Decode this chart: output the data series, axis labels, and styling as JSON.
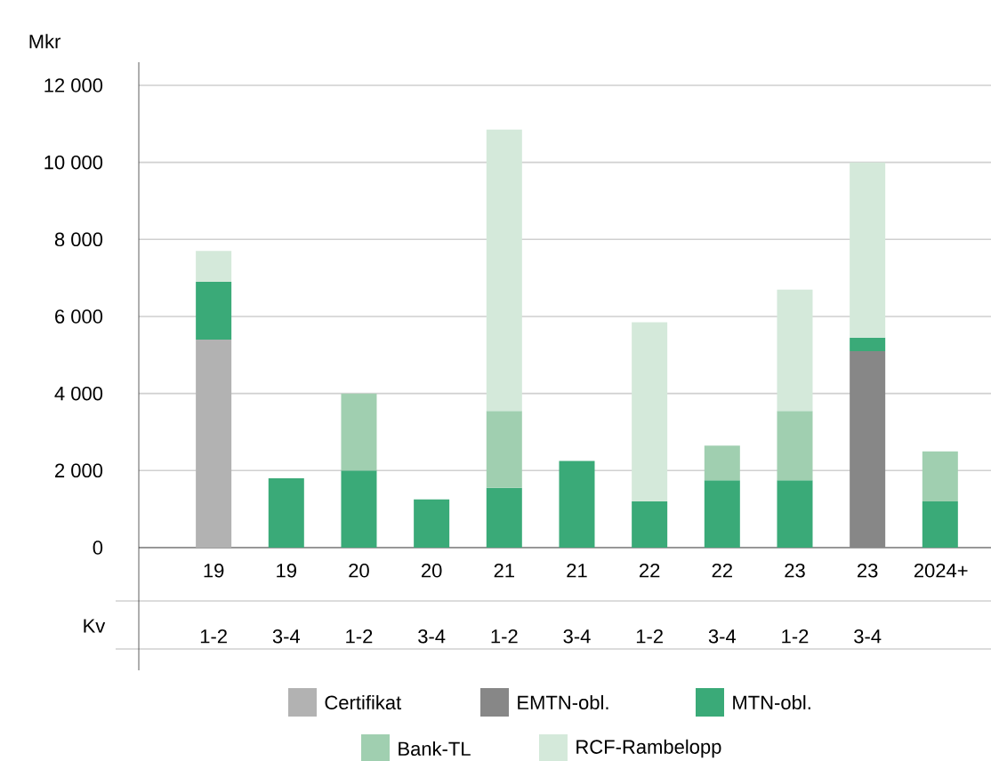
{
  "chart_data": {
    "type": "bar",
    "stacked": true,
    "ylabel": "Mkr",
    "xlabel": "Kv",
    "categories": [
      "19 1-2",
      "19 3-4",
      "20 1-2",
      "20 3-4",
      "21 1-2",
      "21 3-4",
      "22 1-2",
      "22 3-4",
      "23 1-2",
      "23 3-4",
      "2024+"
    ],
    "series": [
      {
        "name": "Certifikat",
        "color": "#b2b2b2",
        "values": [
          5400,
          null,
          null,
          null,
          null,
          null,
          null,
          null,
          null,
          null,
          null
        ]
      },
      {
        "name": "EMTN-obl.",
        "color": "#878787",
        "values": [
          null,
          null,
          null,
          null,
          null,
          null,
          null,
          null,
          null,
          5100,
          null
        ]
      },
      {
        "name": "MTN-obl.",
        "color": "#3aaa78",
        "values": [
          1500,
          1800,
          2000,
          1250,
          1550,
          2250,
          1200,
          1750,
          1750,
          350,
          1200
        ]
      },
      {
        "name": "Bank-TL",
        "color": "#a0cfb0",
        "values": [
          null,
          null,
          2000,
          null,
          2000,
          null,
          null,
          900,
          1800,
          null,
          1300
        ]
      },
      {
        "name": "RCF-Rambelopp",
        "color": "#d4e9da",
        "values": [
          800,
          null,
          null,
          null,
          7300,
          null,
          4650,
          null,
          3150,
          4550,
          null
        ]
      }
    ],
    "ylim": [
      0,
      12600
    ],
    "yticks": [
      0,
      {
        "value": 2000,
        "label": "2 000"
      },
      {
        "value": 4000,
        "label": "4 000"
      },
      {
        "value": 6000,
        "label": "6 000"
      },
      {
        "value": 8000,
        "label": "8 000"
      },
      {
        "value": 10000,
        "label": "10 000"
      },
      {
        "value": 12000,
        "label": "12 000"
      }
    ],
    "grid": "y",
    "legend": "bottom"
  }
}
